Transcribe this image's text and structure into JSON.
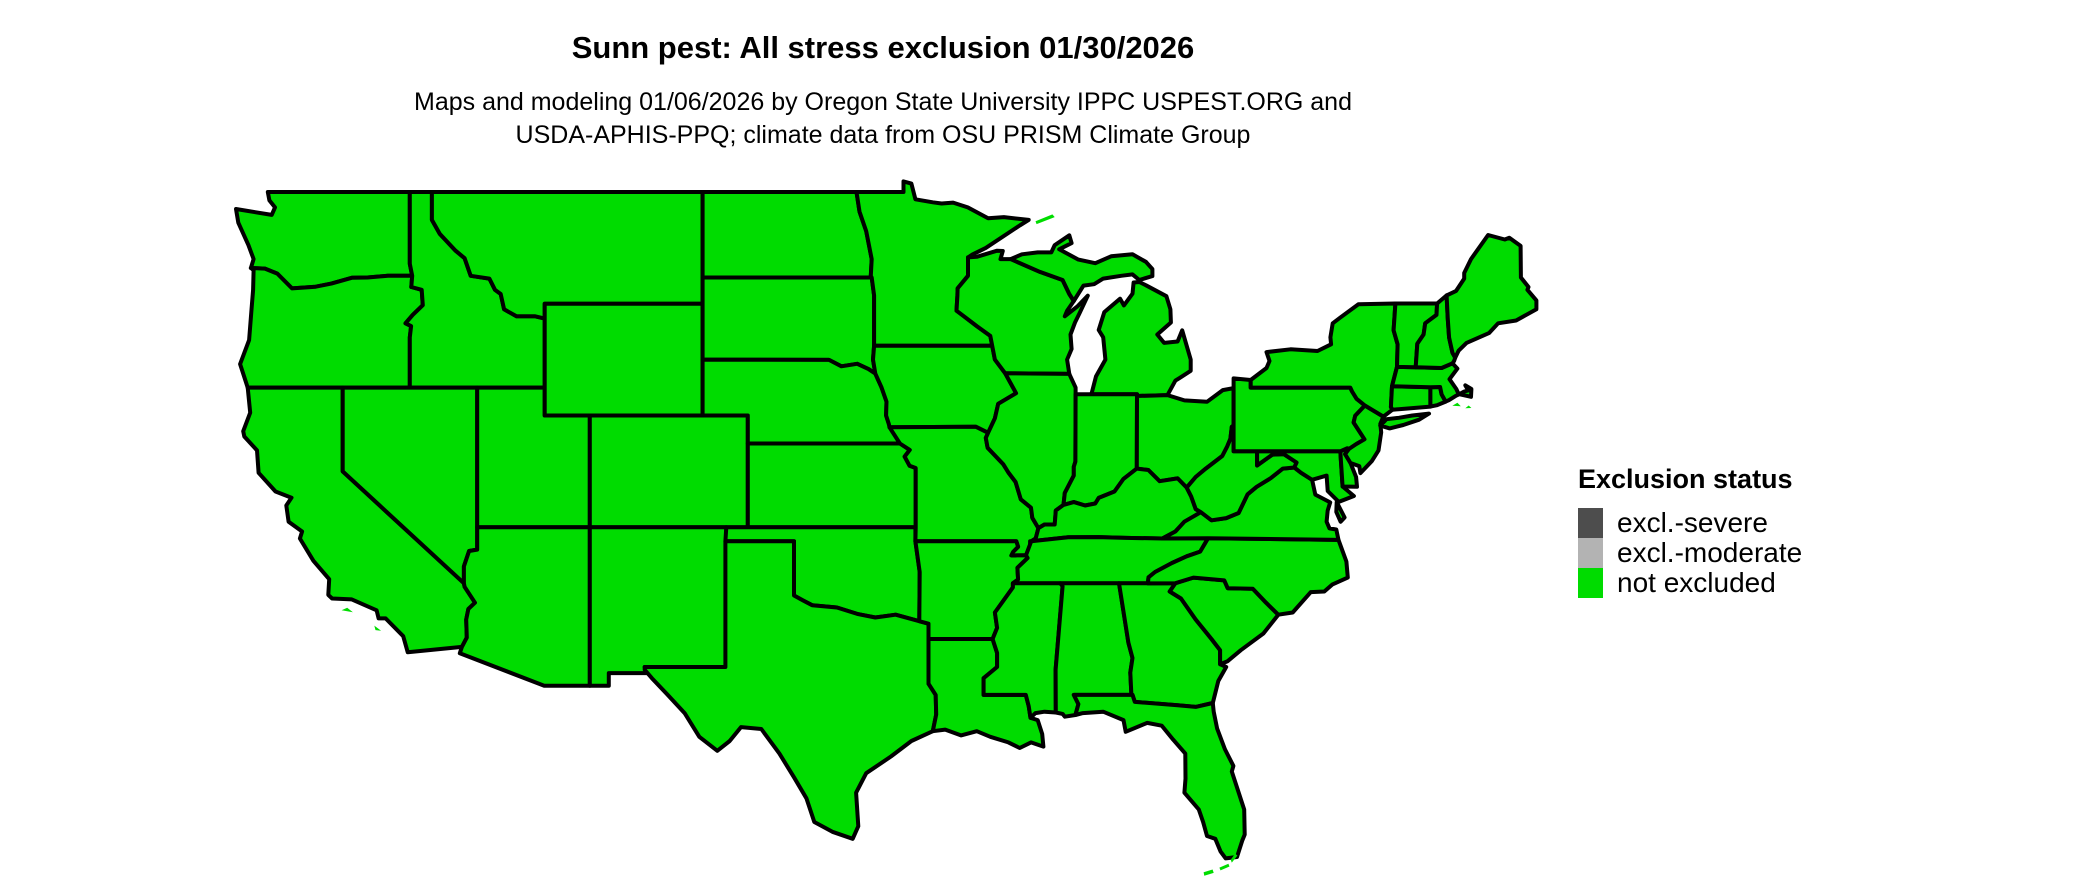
{
  "header": {
    "title": "Sunn pest: All stress exclusion 01/30/2026",
    "subtitle_line1": "Maps and modeling 01/06/2026 by Oregon State University IPPC USPEST.ORG and",
    "subtitle_line2": "USDA-APHIS-PPQ; climate data from OSU PRISM Climate Group"
  },
  "legend": {
    "title": "Exclusion status",
    "items": [
      "excl.-severe",
      "excl.-moderate",
      "not excluded"
    ]
  },
  "map": {
    "status_colors": {
      "excl.-severe": "#4d4d4d",
      "excl.-moderate": "#b3b3b3",
      "not excluded": "#00dc00"
    },
    "border_color": "#000000",
    "all_states_status": "not excluded",
    "state_ids": [
      "WA",
      "OR",
      "CA",
      "ID",
      "NV",
      "UT",
      "AZ",
      "MT",
      "WY",
      "CO",
      "NM",
      "ND",
      "SD",
      "NE",
      "KS",
      "OK",
      "TX",
      "MN",
      "IA",
      "MO",
      "AR",
      "LA",
      "WI",
      "IL",
      "MI",
      "IN",
      "OH",
      "KY",
      "TN",
      "MS",
      "AL",
      "GA",
      "FL",
      "SC",
      "NC",
      "VA",
      "WV",
      "MD",
      "DE",
      "PA",
      "NJ",
      "NY",
      "CT",
      "RI",
      "MA",
      "VT",
      "NH",
      "ME"
    ]
  }
}
